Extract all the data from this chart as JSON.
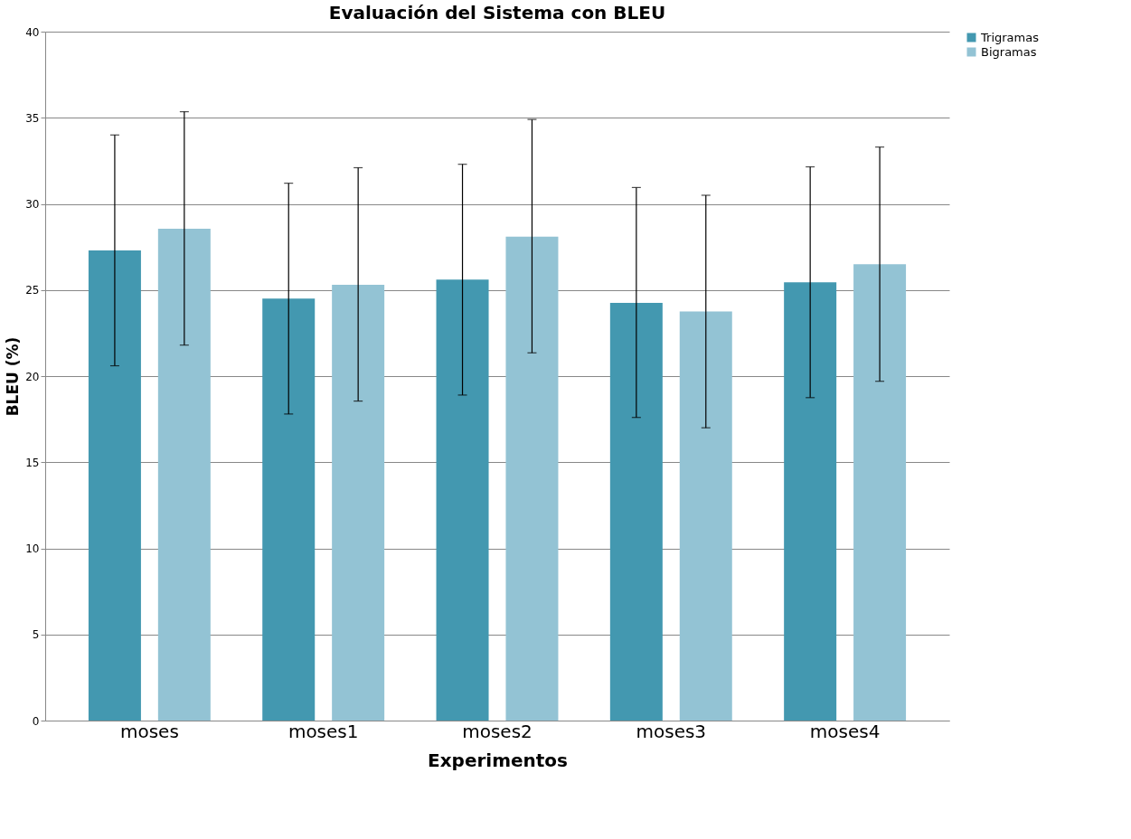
{
  "chart_data": {
    "type": "bar",
    "title": "Evaluación del Sistema con BLEU",
    "xlabel": "Experimentos",
    "ylabel": "BLEU (%)",
    "categories": [
      "moses",
      "moses1",
      "moses2",
      "moses3",
      "moses4"
    ],
    "series": [
      {
        "name": "Trigramas",
        "color": "#4398b0",
        "values": [
          27.3,
          24.5,
          25.6,
          24.25,
          25.45
        ],
        "errors": [
          [
            20.6,
            34.0
          ],
          [
            17.8,
            31.2
          ],
          [
            18.9,
            32.3
          ],
          [
            17.6,
            30.95
          ],
          [
            18.75,
            32.15
          ]
        ]
      },
      {
        "name": "Bigramas",
        "color": "#93c3d4",
        "values": [
          28.55,
          25.3,
          28.1,
          23.75,
          26.5
        ],
        "errors": [
          [
            21.8,
            35.35
          ],
          [
            18.55,
            32.1
          ],
          [
            21.35,
            34.9
          ],
          [
            17.0,
            30.5
          ],
          [
            19.7,
            33.3
          ]
        ]
      }
    ],
    "ylim": [
      0,
      40
    ],
    "yticks": [
      0,
      5,
      10,
      15,
      20,
      25,
      30,
      35,
      40
    ],
    "grid": "y",
    "legend": "right"
  }
}
